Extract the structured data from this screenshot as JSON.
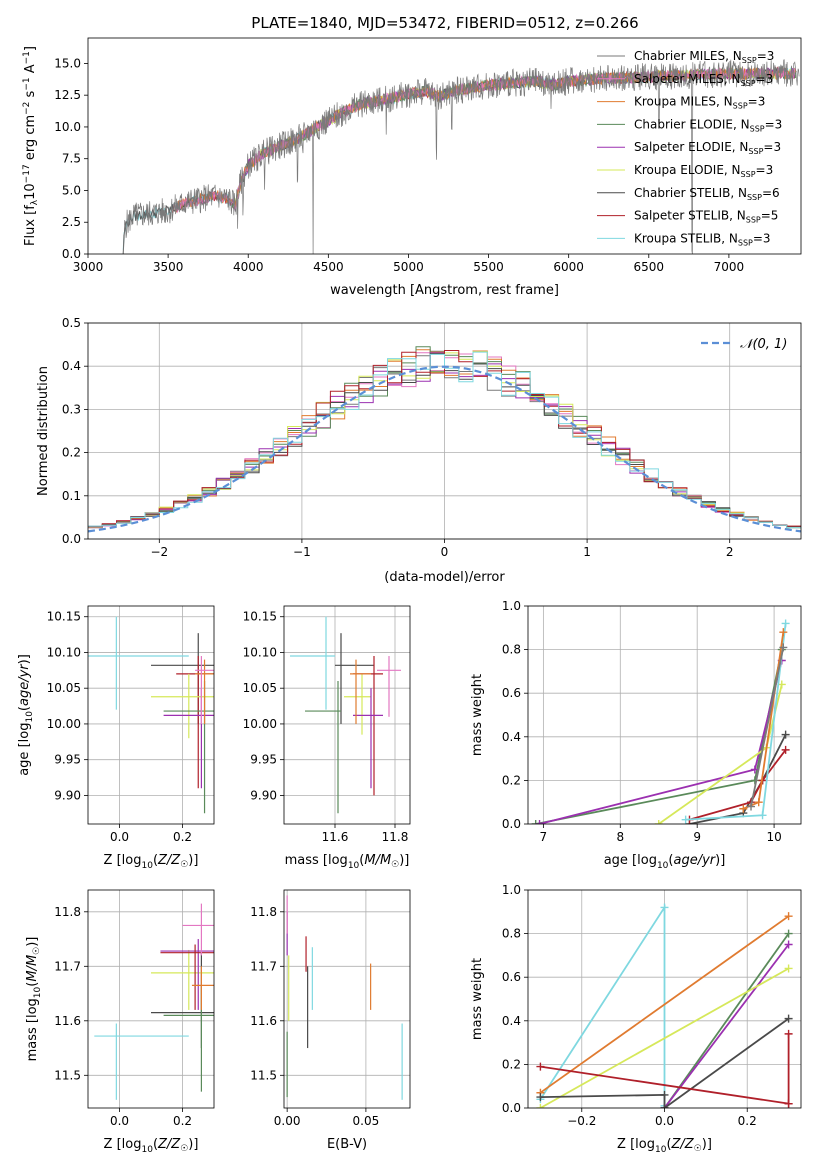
{
  "figure": {
    "title": "PLATE=1840, MJD=53472, FIBERID=0512, z=0.266"
  },
  "colors": {
    "chabrier_miles": "#7a7a7a",
    "salpeter_miles": "#e377c2",
    "kroupa_miles": "#e07b30",
    "chabrier_elodie": "#5a8a5a",
    "salpeter_elodie": "#9b30b0",
    "kroupa_elodie": "#d6e85a",
    "chabrier_stelib": "#4a4a4a",
    "salpeter_stelib": "#b0202a",
    "kroupa_stelib": "#7fd8e0",
    "normal_curve": "#5b8fd6"
  },
  "chart_data": [
    {
      "id": "spectrum",
      "type": "line",
      "xlabel": "wavelength [Angstrom, rest frame]",
      "ylabel": "Flux [f_λ 10^-17 erg cm^-2 s^-1 A^-1]",
      "xlim": [
        3000,
        7450
      ],
      "ylim": [
        0,
        17
      ],
      "xticks": [
        "3000",
        "3500",
        "4000",
        "4500",
        "5000",
        "5500",
        "6000",
        "6500",
        "7000"
      ],
      "yticks": [
        "0.0",
        "2.5",
        "5.0",
        "7.5",
        "10.0",
        "12.5",
        "15.0"
      ],
      "grid": false,
      "legend_position": "top-right",
      "legend": [
        {
          "label": "Chabrier MILES, N",
          "sub": "SSP",
          "tail": "=3",
          "color_key": "chabrier_miles"
        },
        {
          "label": "Salpeter MILES, N",
          "sub": "SSP",
          "tail": "=3",
          "color_key": "salpeter_miles"
        },
        {
          "label": "Kroupa MILES, N",
          "sub": "SSP",
          "tail": "=3",
          "color_key": "kroupa_miles"
        },
        {
          "label": "Chabrier ELODIE, N",
          "sub": "SSP",
          "tail": "=3",
          "color_key": "chabrier_elodie"
        },
        {
          "label": "Salpeter ELODIE, N",
          "sub": "SSP",
          "tail": "=3",
          "color_key": "salpeter_elodie"
        },
        {
          "label": "Kroupa ELODIE, N",
          "sub": "SSP",
          "tail": "=3",
          "color_key": "kroupa_elodie"
        },
        {
          "label": "Chabrier STELIB, N",
          "sub": "SSP",
          "tail": "=6",
          "color_key": "chabrier_stelib"
        },
        {
          "label": "Salpeter STELIB, N",
          "sub": "SSP",
          "tail": "=5",
          "color_key": "salpeter_stelib"
        },
        {
          "label": "Kroupa STELIB, N",
          "sub": "SSP",
          "tail": "=3",
          "color_key": "kroupa_stelib"
        }
      ],
      "continuum": [
        [
          3220,
          0
        ],
        [
          3230,
          2.2
        ],
        [
          3280,
          3.0
        ],
        [
          3400,
          3.2
        ],
        [
          3500,
          3.4
        ],
        [
          3600,
          4.0
        ],
        [
          3700,
          4.3
        ],
        [
          3800,
          4.6
        ],
        [
          3880,
          4.3
        ],
        [
          3920,
          3.8
        ],
        [
          3950,
          5.5
        ],
        [
          4000,
          7.0
        ],
        [
          4100,
          8.0
        ],
        [
          4200,
          8.5
        ],
        [
          4300,
          9.0
        ],
        [
          4400,
          9.8
        ],
        [
          4500,
          10.5
        ],
        [
          4600,
          11.2
        ],
        [
          4700,
          11.8
        ],
        [
          4800,
          12.0
        ],
        [
          4900,
          12.3
        ],
        [
          5000,
          12.6
        ],
        [
          5100,
          12.8
        ],
        [
          5200,
          12.4
        ],
        [
          5300,
          12.9
        ],
        [
          5400,
          13.1
        ],
        [
          5500,
          13.3
        ],
        [
          5600,
          13.4
        ],
        [
          5700,
          13.5
        ],
        [
          5800,
          13.6
        ],
        [
          5900,
          13.3
        ],
        [
          6000,
          13.6
        ],
        [
          6200,
          13.8
        ],
        [
          6400,
          13.9
        ],
        [
          6600,
          14.0
        ],
        [
          6800,
          14.1
        ],
        [
          7000,
          14.2
        ],
        [
          7200,
          14.2
        ]
      ],
      "absorption_dips": [
        [
          3934,
          2.5
        ],
        [
          3969,
          2.0
        ],
        [
          4102,
          2.0
        ],
        [
          4308,
          3.0
        ],
        [
          4340,
          2.0
        ],
        [
          4405,
          13.0
        ],
        [
          4861,
          2.0
        ],
        [
          5175,
          4.5
        ],
        [
          5270,
          2.5
        ],
        [
          5890,
          3.0
        ],
        [
          6563,
          3.0
        ],
        [
          6770,
          14.0
        ]
      ]
    },
    {
      "id": "residuals",
      "type": "histogram",
      "xlabel": "(data-model)/error",
      "ylabel": "Normed distribution",
      "xlim": [
        -2.5,
        2.5
      ],
      "ylim": [
        0,
        0.5
      ],
      "xticks": [
        "−2",
        "−1",
        "0",
        "1",
        "2"
      ],
      "yticks": [
        "0.0",
        "0.1",
        "0.2",
        "0.3",
        "0.4",
        "0.5"
      ],
      "grid": true,
      "legend_position": "top-right",
      "legend_label": "𝒩(0, 1)",
      "bin_width": 0.1
    },
    {
      "id": "age_vs_Z",
      "type": "errorbar",
      "xlabel": "Z [log10(Z/Z☉)]",
      "ylabel": "age [log10(age/yr)]",
      "xlim": [
        -0.1,
        0.3
      ],
      "ylim": [
        9.86,
        10.165
      ],
      "xticks": [
        "0.0",
        "0.2"
      ],
      "yticks": [
        "9.90",
        "9.95",
        "10.00",
        "10.05",
        "10.10",
        "10.15"
      ],
      "grid": true,
      "points": [
        {
          "c": "kroupa_stelib",
          "x": -0.01,
          "xlo": -0.12,
          "xhi": 0.22,
          "y": 10.095,
          "ylo": 10.02,
          "yhi": 10.15
        },
        {
          "c": "chabrier_stelib",
          "x": 0.25,
          "xlo": 0.1,
          "xhi": 0.3,
          "y": 10.082,
          "ylo": 10.0,
          "yhi": 10.127
        },
        {
          "c": "salpeter_stelib",
          "x": 0.25,
          "xlo": 0.18,
          "xhi": 0.3,
          "y": 10.07,
          "ylo": 9.91,
          "yhi": 10.095
        },
        {
          "c": "kroupa_elodie",
          "x": 0.22,
          "xlo": 0.1,
          "xhi": 0.3,
          "y": 10.038,
          "ylo": 9.98,
          "yhi": 10.07
        },
        {
          "c": "chabrier_elodie",
          "x": 0.27,
          "xlo": 0.14,
          "xhi": 0.3,
          "y": 10.018,
          "ylo": 9.875,
          "yhi": 10.06
        },
        {
          "c": "salpeter_elodie",
          "x": 0.26,
          "xlo": 0.14,
          "xhi": 0.3,
          "y": 10.012,
          "ylo": 9.91,
          "yhi": 10.05
        },
        {
          "c": "kroupa_miles",
          "x": 0.27,
          "xlo": 0.24,
          "xhi": 0.3,
          "y": 10.07,
          "ylo": 10.0,
          "yhi": 10.09
        },
        {
          "c": "salpeter_miles",
          "x": 0.26,
          "xlo": 0.24,
          "xhi": 0.3,
          "y": 10.075,
          "ylo": 10.0,
          "yhi": 10.095
        }
      ]
    },
    {
      "id": "age_vs_mass",
      "type": "errorbar",
      "xlabel": "mass [log10(M/M☉)]",
      "ylabel": "",
      "xlim": [
        11.43,
        11.85
      ],
      "ylim": [
        9.86,
        10.165
      ],
      "xticks": [
        "11.6",
        "11.8"
      ],
      "yticks": [
        "9.90",
        "9.95",
        "10.00",
        "10.05",
        "10.10",
        "10.15"
      ],
      "grid": true,
      "points": [
        {
          "c": "kroupa_stelib",
          "x": 11.57,
          "xlo": 11.45,
          "xhi": 11.6,
          "y": 10.095,
          "ylo": 10.02,
          "yhi": 10.15
        },
        {
          "c": "chabrier_stelib",
          "x": 11.62,
          "xlo": 11.6,
          "xhi": 11.73,
          "y": 10.082,
          "ylo": 10.0,
          "yhi": 10.127
        },
        {
          "c": "salpeter_stelib",
          "x": 11.73,
          "xlo": 11.66,
          "xhi": 11.76,
          "y": 10.07,
          "ylo": 9.9,
          "yhi": 10.095
        },
        {
          "c": "kroupa_elodie",
          "x": 11.69,
          "xlo": 11.63,
          "xhi": 11.72,
          "y": 10.038,
          "ylo": 9.985,
          "yhi": 10.07
        },
        {
          "c": "chabrier_elodie",
          "x": 11.61,
          "xlo": 11.5,
          "xhi": 11.62,
          "y": 10.018,
          "ylo": 9.875,
          "yhi": 10.06
        },
        {
          "c": "salpeter_elodie",
          "x": 11.72,
          "xlo": 11.66,
          "xhi": 11.76,
          "y": 10.012,
          "ylo": 9.91,
          "yhi": 10.05
        },
        {
          "c": "kroupa_miles",
          "x": 11.67,
          "xlo": 11.65,
          "xhi": 11.72,
          "y": 10.07,
          "ylo": 10.0,
          "yhi": 10.09
        },
        {
          "c": "salpeter_miles",
          "x": 11.78,
          "xlo": 11.74,
          "xhi": 11.82,
          "y": 10.075,
          "ylo": 10.01,
          "yhi": 10.095
        }
      ]
    },
    {
      "id": "weight_vs_age",
      "type": "line",
      "xlabel": "age [log10(age/yr)]",
      "ylabel": "mass weight",
      "xlim": [
        6.8,
        10.35
      ],
      "ylim": [
        0,
        1.0
      ],
      "xticks": [
        "7",
        "8",
        "9",
        "10"
      ],
      "yticks": [
        "0.0",
        "0.2",
        "0.4",
        "0.6",
        "0.8",
        "1.0"
      ],
      "grid": true,
      "series": [
        {
          "c": "chabrier_elodie",
          "pts": [
            [
              6.9,
              0.0
            ],
            [
              9.75,
              0.2
            ],
            [
              10.1,
              0.8
            ]
          ]
        },
        {
          "c": "salpeter_elodie",
          "pts": [
            [
              6.95,
              0.0
            ],
            [
              9.75,
              0.25
            ],
            [
              10.1,
              0.75
            ]
          ]
        },
        {
          "c": "kroupa_elodie",
          "pts": [
            [
              8.5,
              0.0
            ],
            [
              9.9,
              0.35
            ],
            [
              10.1,
              0.64
            ]
          ]
        },
        {
          "c": "chabrier_stelib",
          "pts": [
            [
              8.9,
              0.0
            ],
            [
              9.6,
              0.05
            ],
            [
              9.85,
              0.2
            ],
            [
              10.15,
              0.41
            ]
          ]
        },
        {
          "c": "salpeter_stelib",
          "pts": [
            [
              8.9,
              0.02
            ],
            [
              9.7,
              0.1
            ],
            [
              9.85,
              0.2
            ],
            [
              10.15,
              0.34
            ]
          ]
        },
        {
          "c": "kroupa_stelib",
          "pts": [
            [
              8.85,
              0.02
            ],
            [
              9.85,
              0.04
            ],
            [
              10.15,
              0.92
            ]
          ]
        },
        {
          "c": "kroupa_miles",
          "pts": [
            [
              9.6,
              0.07
            ],
            [
              9.8,
              0.1
            ],
            [
              10.12,
              0.88
            ]
          ]
        },
        {
          "c": "chabrier_miles",
          "pts": [
            [
              9.7,
              0.08
            ],
            [
              10.12,
              0.81
            ]
          ]
        }
      ]
    },
    {
      "id": "mass_vs_Z",
      "type": "errorbar",
      "xlabel": "Z [log10(Z/Z☉)]",
      "ylabel": "mass [log10(M/M☉)]",
      "xlim": [
        -0.1,
        0.3
      ],
      "ylim": [
        11.44,
        11.84
      ],
      "xticks": [
        "0.0",
        "0.2"
      ],
      "yticks": [
        "11.5",
        "11.6",
        "11.7",
        "11.8"
      ],
      "grid": true,
      "points": [
        {
          "c": "kroupa_stelib",
          "x": -0.01,
          "xlo": -0.08,
          "xhi": 0.22,
          "y": 11.572,
          "ylo": 11.455,
          "yhi": 11.595
        },
        {
          "c": "chabrier_stelib",
          "x": 0.26,
          "xlo": 0.1,
          "xhi": 0.3,
          "y": 11.615,
          "ylo": 11.55,
          "yhi": 11.725
        },
        {
          "c": "chabrier_elodie",
          "x": 0.26,
          "xlo": 0.14,
          "xhi": 0.3,
          "y": 11.61,
          "ylo": 11.47,
          "yhi": 11.665
        },
        {
          "c": "kroupa_elodie",
          "x": 0.22,
          "xlo": 0.1,
          "xhi": 0.3,
          "y": 11.688,
          "ylo": 11.62,
          "yhi": 11.73
        },
        {
          "c": "salpeter_elodie",
          "x": 0.25,
          "xlo": 0.13,
          "xhi": 0.3,
          "y": 11.728,
          "ylo": 11.62,
          "yhi": 11.75
        },
        {
          "c": "salpeter_stelib",
          "x": 0.24,
          "xlo": 0.13,
          "xhi": 0.3,
          "y": 11.725,
          "ylo": 11.62,
          "yhi": 11.74
        },
        {
          "c": "kroupa_miles",
          "x": 0.26,
          "xlo": 0.23,
          "xhi": 0.3,
          "y": 11.665,
          "ylo": 11.62,
          "yhi": 11.7
        },
        {
          "c": "salpeter_miles",
          "x": 0.26,
          "xlo": 0.2,
          "xhi": 0.3,
          "y": 11.775,
          "ylo": 11.72,
          "yhi": 11.815
        }
      ]
    },
    {
      "id": "mass_vs_ebv",
      "type": "errorbar",
      "xlabel": "E(B-V)",
      "ylabel": "",
      "xlim": [
        -0.002,
        0.078
      ],
      "ylim": [
        11.44,
        11.84
      ],
      "xticks": [
        "0.00",
        "0.05"
      ],
      "yticks": [
        "11.5",
        "11.6",
        "11.7",
        "11.8"
      ],
      "grid": true,
      "points": [
        {
          "c": "salpeter_elodie",
          "x": 0.0,
          "y": 11.76,
          "ylo": 11.72,
          "yhi": 11.8
        },
        {
          "c": "salpeter_miles",
          "x": 0.0,
          "y": 11.8,
          "ylo": 11.76,
          "yhi": 11.83
        },
        {
          "c": "kroupa_elodie",
          "x": 0.001,
          "y": 11.68,
          "ylo": 11.6,
          "yhi": 11.72
        },
        {
          "c": "chabrier_elodie",
          "x": 0.0,
          "y": 11.52,
          "ylo": 11.46,
          "yhi": 11.58
        },
        {
          "c": "salpeter_stelib",
          "x": 0.012,
          "y": 11.72,
          "ylo": 11.69,
          "yhi": 11.755
        },
        {
          "c": "chabrier_stelib",
          "x": 0.013,
          "y": 11.62,
          "ylo": 11.55,
          "yhi": 11.7
        },
        {
          "c": "kroupa_stelib",
          "x": 0.016,
          "y": 11.67,
          "ylo": 11.62,
          "yhi": 11.735
        },
        {
          "c": "kroupa_miles",
          "x": 0.053,
          "y": 11.66,
          "ylo": 11.62,
          "yhi": 11.705
        },
        {
          "c": "kroupa_stelib",
          "x": 0.073,
          "y": 11.52,
          "ylo": 11.455,
          "yhi": 11.595
        }
      ]
    },
    {
      "id": "weight_vs_Z",
      "type": "line",
      "xlabel": "Z [log10(Z/Z☉)]",
      "ylabel": "mass weight",
      "xlim": [
        -0.33,
        0.33
      ],
      "ylim": [
        0,
        1.0
      ],
      "xticks": [
        "−0.2",
        "0.0",
        "0.2"
      ],
      "yticks": [
        "0.0",
        "0.2",
        "0.4",
        "0.6",
        "0.8",
        "1.0"
      ],
      "grid": true,
      "series": [
        {
          "c": "kroupa_stelib",
          "pts": [
            [
              -0.3,
              0.04
            ],
            [
              0.0,
              0.92
            ],
            [
              0.0,
              0.01
            ]
          ]
        },
        {
          "c": "kroupa_miles",
          "pts": [
            [
              -0.3,
              0.07
            ],
            [
              0.3,
              0.88
            ]
          ]
        },
        {
          "c": "chabrier_elodie",
          "pts": [
            [
              0.0,
              0.0
            ],
            [
              0.3,
              0.8
            ]
          ]
        },
        {
          "c": "salpeter_elodie",
          "pts": [
            [
              0.0,
              0.0
            ],
            [
              0.3,
              0.75
            ]
          ]
        },
        {
          "c": "kroupa_elodie",
          "pts": [
            [
              -0.3,
              0.0
            ],
            [
              0.3,
              0.64
            ]
          ]
        },
        {
          "c": "chabrier_stelib",
          "pts": [
            [
              -0.3,
              0.05
            ],
            [
              0.0,
              0.06
            ],
            [
              0.0,
              0.0
            ],
            [
              0.3,
              0.41
            ]
          ]
        },
        {
          "c": "salpeter_stelib",
          "pts": [
            [
              -0.3,
              0.19
            ],
            [
              0.3,
              0.02
            ]
          ]
        },
        {
          "c": "salpeter_stelib",
          "pts": [
            [
              0.3,
              0.02
            ],
            [
              0.3,
              0.34
            ]
          ]
        }
      ]
    }
  ]
}
